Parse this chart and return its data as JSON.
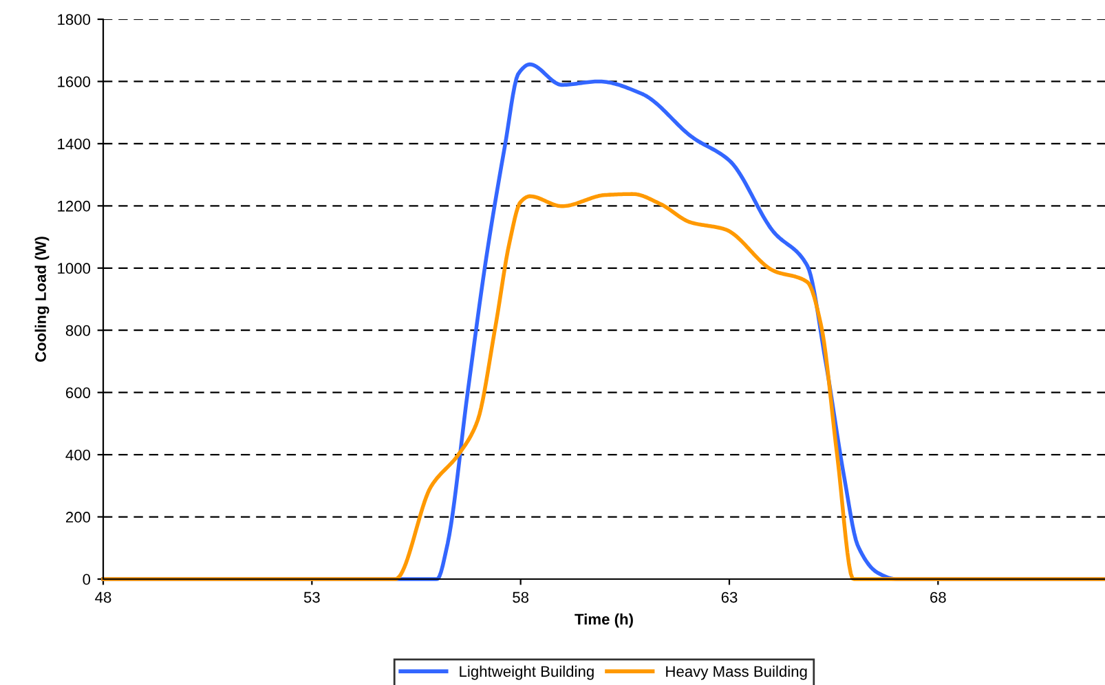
{
  "chart_data": {
    "type": "line",
    "xlabel": "Time (h)",
    "ylabel": "Cooling Load (W)",
    "xlim": [
      48,
      72
    ],
    "xticks": [
      48,
      53,
      58,
      63,
      68
    ],
    "ylim": [
      0,
      1800
    ],
    "yticks": [
      0,
      200,
      400,
      600,
      800,
      1000,
      1200,
      1400,
      1600,
      1800
    ],
    "grid": "y",
    "legend": "bottom",
    "marker": "none",
    "line_style": "solid",
    "series": [
      {
        "name": "Lightweight Building",
        "color": "#3366ff",
        "x": [
          48,
          56.0,
          56.24,
          56.74,
          57.18,
          57.62,
          57.95,
          58.22,
          58.99,
          59.87,
          60.91,
          62.12,
          63.0,
          64.05,
          64.87,
          65.31,
          65.75,
          66.08,
          66.57,
          67.0,
          72
        ],
        "values": [
          0,
          0,
          107,
          609,
          1036,
          1390,
          1626,
          1655,
          1589,
          1600,
          1560,
          1420,
          1346,
          1118,
          1007,
          697,
          329,
          107,
          19,
          0,
          0
        ]
      },
      {
        "name": "Heavy Mass Building",
        "color": "#ff9900",
        "x": [
          48,
          55.0,
          55.86,
          56.52,
          56.96,
          57.4,
          57.73,
          58.0,
          58.22,
          58.99,
          60.03,
          60.69,
          61.35,
          62.07,
          62.89,
          64.05,
          64.87,
          65.2,
          65.58,
          65.97,
          72
        ],
        "values": [
          0,
          0,
          299,
          402,
          506,
          815,
          1080,
          1213,
          1231,
          1199,
          1235,
          1238,
          1206,
          1147,
          1125,
          992,
          955,
          815,
          402,
          0,
          0
        ]
      }
    ]
  }
}
